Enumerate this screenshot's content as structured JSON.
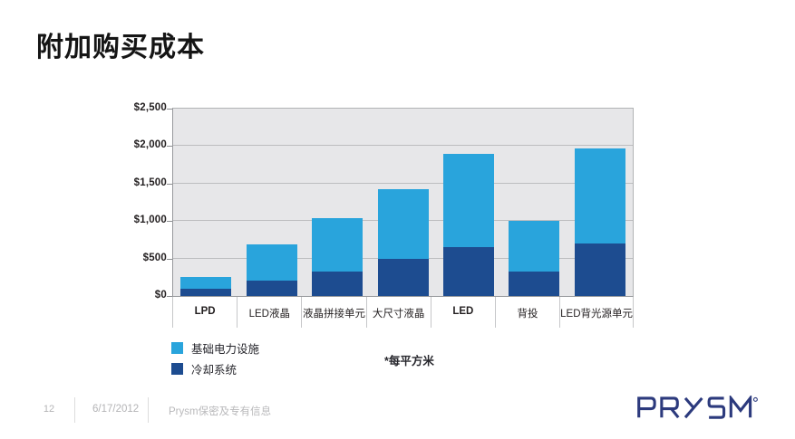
{
  "title": "附加购买成本",
  "chart_data": {
    "type": "bar",
    "stacked": true,
    "title": "附加购买成本",
    "categories": [
      {
        "label": "LPD",
        "bold": true
      },
      {
        "label": "LED液晶",
        "bold": false
      },
      {
        "label": "液晶拼接单元",
        "bold": false
      },
      {
        "label": "大尺寸液晶",
        "bold": false
      },
      {
        "label": "LED",
        "bold": true
      },
      {
        "label": "背投",
        "bold": false
      },
      {
        "label": "LED背光源单元",
        "bold": false
      }
    ],
    "series": [
      {
        "name": "基础电力设施",
        "color": "#29A4DC",
        "values": [
          150,
          490,
          715,
          940,
          1250,
          670,
          1270
        ]
      },
      {
        "name": "冷却系统",
        "color": "#1D4C90",
        "values": [
          100,
          200,
          330,
          490,
          650,
          330,
          700
        ]
      }
    ],
    "stack_order_bottom_to_top": [
      "冷却系统",
      "基础电力设施"
    ],
    "totals": [
      250,
      690,
      1045,
      1430,
      1900,
      1000,
      1970
    ],
    "ylim": [
      0,
      2500
    ],
    "yticks": [
      {
        "value": 2500,
        "label": "$2,500"
      },
      {
        "value": 2000,
        "label": "$2,000"
      },
      {
        "value": 1500,
        "label": "$1,500"
      },
      {
        "value": 1000,
        "label": "$1,000"
      },
      {
        "value": 500,
        "label": "$500"
      },
      {
        "value": 0,
        "label": "$0"
      }
    ],
    "grid": true,
    "legend_position": "bottom-left",
    "note": "*每平方米",
    "plot_background": "#E7E7E9"
  },
  "footer": {
    "page_number": "12",
    "date": "6/17/2012",
    "confidential": "Prysm保密及专有信息"
  },
  "logo": {
    "text": "PRYSM",
    "registered": "®",
    "color": "#2C3A7D"
  }
}
